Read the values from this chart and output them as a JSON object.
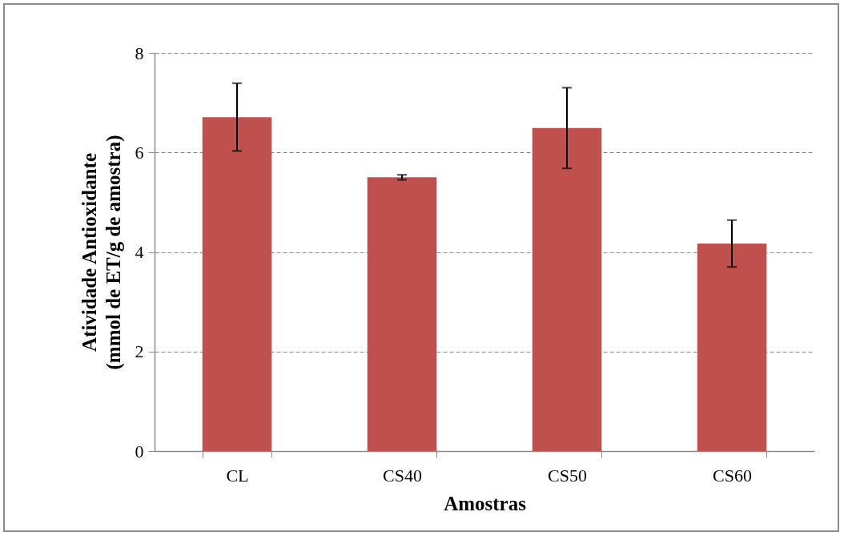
{
  "chart_data": {
    "type": "bar",
    "xlabel": "Amostras",
    "ylabel": "Atividade Antioxidante\n(mmol de ET/g de amostra)",
    "categories": [
      "CL",
      "CS40",
      "CS50",
      "CS60"
    ],
    "values": [
      6.71,
      5.5,
      6.49,
      4.17
    ],
    "errors": [
      0.68,
      0.05,
      0.81,
      0.47
    ],
    "color": "#c0504d",
    "ylim": [
      0,
      8
    ],
    "yticks": [
      0,
      2,
      4,
      6,
      8
    ],
    "grid": "y"
  }
}
